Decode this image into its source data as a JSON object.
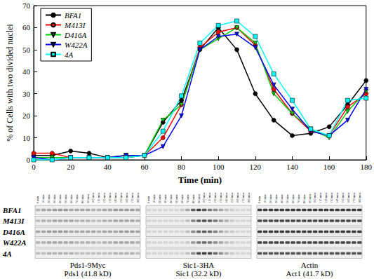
{
  "chart_data": {
    "type": "line",
    "x": [
      0,
      10,
      20,
      30,
      40,
      50,
      60,
      70,
      80,
      90,
      100,
      110,
      120,
      130,
      140,
      150,
      160,
      170,
      180
    ],
    "xlabel": "Time (min)",
    "ylabel": "% of Cells with two divided nuclei",
    "xlim": [
      0,
      180
    ],
    "xticks": [
      0,
      20,
      40,
      60,
      80,
      100,
      120,
      140,
      160,
      180
    ],
    "ylim": [
      0,
      70
    ],
    "yticks": [
      0,
      10,
      20,
      30,
      40,
      50,
      60,
      70
    ],
    "legend": "upper left",
    "series": [
      {
        "name": "BFA1",
        "color": "#000000",
        "marker": "circle",
        "values": [
          2,
          2,
          4,
          3,
          1,
          1,
          2,
          17,
          27,
          50,
          60,
          50,
          30,
          18,
          11,
          12,
          15,
          25,
          36
        ]
      },
      {
        "name": "M413I",
        "color": "#ff0000",
        "marker": "circle",
        "values": [
          3,
          3,
          1,
          1,
          1,
          2,
          2,
          10,
          25,
          51,
          58,
          60,
          52,
          32,
          21,
          13,
          11,
          24,
          30
        ]
      },
      {
        "name": "D416A",
        "color": "#00cc00",
        "marker": "triangle-down",
        "values": [
          1,
          1,
          1,
          1,
          1,
          2,
          2,
          18,
          25,
          50,
          55,
          60,
          53,
          30,
          21,
          14,
          10,
          22,
          31
        ]
      },
      {
        "name": "W422A",
        "color": "#0000ff",
        "marker": "triangle-down",
        "values": [
          1,
          0,
          1,
          1,
          1,
          2,
          2,
          6,
          20,
          50,
          56,
          57,
          51,
          34,
          23,
          13,
          11,
          18,
          32
        ]
      },
      {
        "name": "4A",
        "color": "#00ffff",
        "marker": "square",
        "values": [
          0,
          0,
          1,
          1,
          1,
          1,
          2,
          13,
          29,
          53,
          61,
          63,
          56,
          39,
          27,
          14,
          11,
          27,
          28
        ]
      }
    ]
  },
  "blots": {
    "lanes": [
      "0 min",
      "10 min",
      "20 min",
      "30 min",
      "40 min",
      "50 min",
      "60 min",
      "70 min",
      "80 min",
      "90 min",
      "100 min",
      "110 min",
      "120 min",
      "130 min",
      "140 min",
      "150 min",
      "160 min",
      "170 min",
      "180 min"
    ],
    "rows": [
      "BFA1",
      "M413I",
      "D416A",
      "W422A",
      "4A"
    ],
    "panels": [
      {
        "name": "Pds1-9Myc",
        "label": "Pds1 (41.8 kD)",
        "intensities": [
          [
            0.25,
            0.3,
            0.3,
            0.35,
            0.35,
            0.35,
            0.3,
            0.3,
            0.3,
            0.3,
            0.25,
            0.25,
            0.3,
            0.3,
            0.35,
            0.35,
            0.35,
            0.35,
            0.3
          ],
          [
            0.2,
            0.25,
            0.25,
            0.3,
            0.3,
            0.3,
            0.3,
            0.25,
            0.25,
            0.25,
            0.2,
            0.2,
            0.25,
            0.25,
            0.3,
            0.3,
            0.3,
            0.3,
            0.25
          ],
          [
            0.3,
            0.3,
            0.35,
            0.35,
            0.35,
            0.35,
            0.3,
            0.3,
            0.3,
            0.3,
            0.3,
            0.25,
            0.3,
            0.3,
            0.3,
            0.35,
            0.35,
            0.35,
            0.3
          ],
          [
            0.25,
            0.25,
            0.3,
            0.3,
            0.3,
            0.3,
            0.3,
            0.25,
            0.25,
            0.25,
            0.25,
            0.2,
            0.25,
            0.25,
            0.3,
            0.3,
            0.3,
            0.3,
            0.25
          ],
          [
            0.2,
            0.2,
            0.25,
            0.25,
            0.25,
            0.25,
            0.25,
            0.2,
            0.2,
            0.2,
            0.2,
            0.2,
            0.2,
            0.2,
            0.25,
            0.25,
            0.25,
            0.25,
            0.2
          ]
        ]
      },
      {
        "name": "Sic1-3HA",
        "label": "Sic1 (32.2 kD)",
        "intensities": [
          [
            0.1,
            0.1,
            0.1,
            0.1,
            0.1,
            0.1,
            0.15,
            0.3,
            0.6,
            0.75,
            0.65,
            0.5,
            0.4,
            0.3,
            0.2,
            0.15,
            0.1,
            0.1,
            0.1
          ],
          [
            0.1,
            0.1,
            0.1,
            0.1,
            0.1,
            0.1,
            0.1,
            0.2,
            0.45,
            0.6,
            0.65,
            0.6,
            0.5,
            0.35,
            0.25,
            0.15,
            0.1,
            0.1,
            0.1
          ],
          [
            0.1,
            0.1,
            0.1,
            0.1,
            0.1,
            0.1,
            0.1,
            0.2,
            0.4,
            0.55,
            0.6,
            0.55,
            0.45,
            0.3,
            0.2,
            0.15,
            0.1,
            0.1,
            0.1
          ],
          [
            0.1,
            0.1,
            0.1,
            0.1,
            0.1,
            0.1,
            0.1,
            0.15,
            0.35,
            0.5,
            0.55,
            0.5,
            0.4,
            0.3,
            0.2,
            0.15,
            0.1,
            0.1,
            0.1
          ],
          [
            0.1,
            0.1,
            0.1,
            0.1,
            0.1,
            0.1,
            0.1,
            0.2,
            0.4,
            0.7,
            0.75,
            0.7,
            0.55,
            0.4,
            0.25,
            0.15,
            0.1,
            0.1,
            0.1
          ]
        ]
      },
      {
        "name": "Actin",
        "label": "Act1 (41.7 kD)",
        "intensities": [
          [
            0.75,
            0.75,
            0.75,
            0.75,
            0.75,
            0.75,
            0.75,
            0.75,
            0.75,
            0.75,
            0.75,
            0.75,
            0.75,
            0.75,
            0.75,
            0.75,
            0.75,
            0.75,
            0.75
          ],
          [
            0.7,
            0.7,
            0.7,
            0.7,
            0.7,
            0.7,
            0.7,
            0.7,
            0.7,
            0.7,
            0.7,
            0.7,
            0.7,
            0.7,
            0.7,
            0.7,
            0.7,
            0.7,
            0.7
          ],
          [
            0.75,
            0.75,
            0.75,
            0.75,
            0.75,
            0.75,
            0.75,
            0.75,
            0.75,
            0.75,
            0.75,
            0.75,
            0.75,
            0.75,
            0.75,
            0.75,
            0.75,
            0.75,
            0.75
          ],
          [
            0.7,
            0.7,
            0.7,
            0.7,
            0.7,
            0.7,
            0.7,
            0.7,
            0.7,
            0.7,
            0.7,
            0.7,
            0.7,
            0.7,
            0.7,
            0.7,
            0.7,
            0.7,
            0.7
          ],
          [
            0.65,
            0.65,
            0.65,
            0.65,
            0.65,
            0.65,
            0.65,
            0.65,
            0.65,
            0.65,
            0.65,
            0.65,
            0.65,
            0.65,
            0.65,
            0.65,
            0.65,
            0.65,
            0.65
          ]
        ]
      }
    ]
  }
}
